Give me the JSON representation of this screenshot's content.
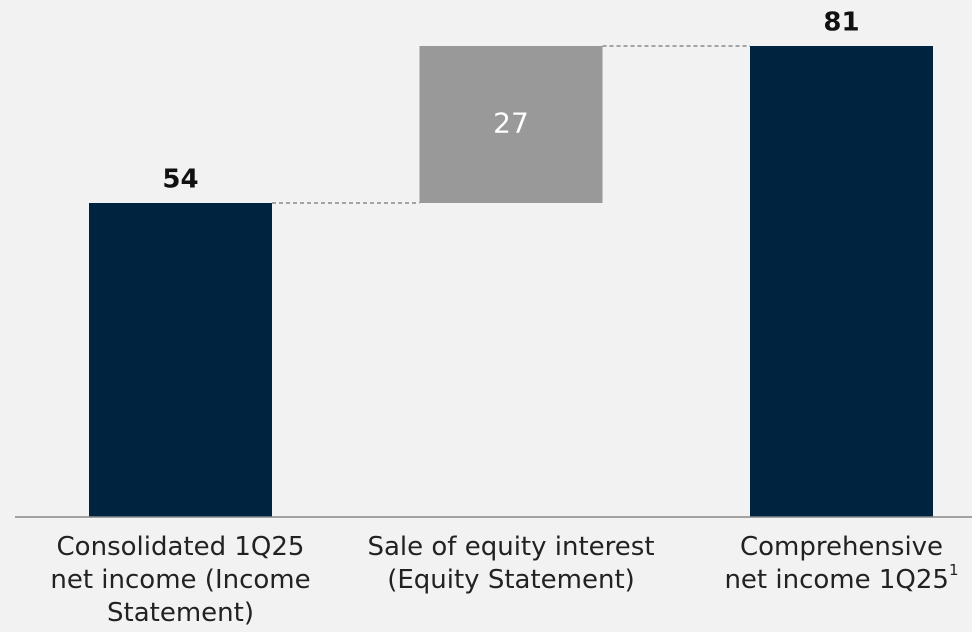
{
  "chart_data": {
    "type": "waterfall",
    "categories": [
      [
        "Consolidated 1Q25",
        "net income (Income",
        "Statement)"
      ],
      [
        "Sale of equity interest",
        "(Equity Statement)"
      ],
      [
        "Comprehensive",
        "net income 1Q25"
      ]
    ],
    "footnotes": [
      null,
      null,
      "1"
    ],
    "values": [
      54,
      27,
      81
    ],
    "measure": [
      "absolute",
      "relative",
      "total"
    ],
    "colors": [
      "#00243f",
      "#999999",
      "#00243f"
    ],
    "ylim": [
      0,
      81
    ]
  }
}
